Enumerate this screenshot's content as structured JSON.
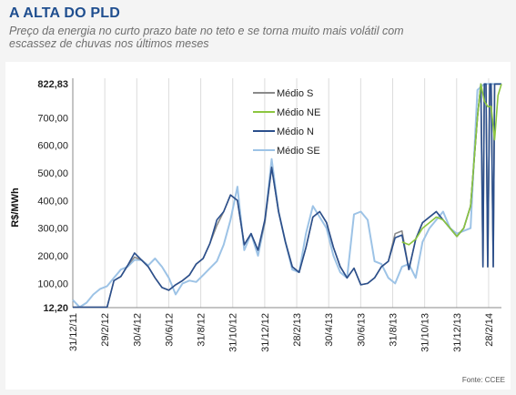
{
  "header": {
    "title": "A ALTA DO PLD",
    "subtitle": "Preço da energia no curto prazo bate no teto e se torna muito mais volátil com escassez de chuvas nos últimos meses"
  },
  "source": "Fonte: CCEE",
  "colors": {
    "S": "#8a8a8a",
    "NE": "#8cc63f",
    "N": "#2b4f8c",
    "SE": "#9dc3e6"
  },
  "chart_data": {
    "type": "line",
    "title": "A ALTA DO PLD",
    "subtitle": "Preço da energia no curto prazo bate no teto e se torna muito mais volátil com escassez de chuvas nos últimos meses",
    "ylabel": "R$/MWh",
    "xlabel": "",
    "ylim": [
      12.2,
      822.83
    ],
    "yticks": [
      12.2,
      100,
      200,
      300,
      400,
      500,
      600,
      700,
      822.83
    ],
    "ytick_labels": [
      "12,20",
      "100,00",
      "200,00",
      "300,00",
      "400,00",
      "500,00",
      "600,00",
      "700,00",
      "822,83"
    ],
    "xticks": [
      "31/12/11",
      "29/2/12",
      "30/4/12",
      "30/6/12",
      "31/8/12",
      "31/10/12",
      "31/12/12",
      "28/2/13",
      "30/4/13",
      "30/6/13",
      "31/8/13",
      "31/10/13",
      "31/12/13",
      "28/2/14"
    ],
    "grid": "vertical",
    "legend_position": "top-center",
    "x_unit": "weeks",
    "x_start": "31/12/11",
    "series": [
      {
        "name": "Médio S",
        "color_key": "S",
        "x": [
          0,
          2,
          4,
          6,
          8,
          10,
          12,
          14,
          16,
          18,
          20,
          22,
          24,
          26,
          28,
          30,
          32,
          34,
          36,
          38,
          40,
          42,
          44,
          46,
          48,
          50,
          52,
          54,
          56,
          58,
          60,
          62,
          64,
          66,
          68,
          70,
          72,
          74,
          76,
          78,
          80,
          82,
          84,
          86,
          88,
          90,
          92,
          94,
          96,
          98,
          100,
          102,
          104,
          106,
          108,
          110,
          112,
          114,
          116,
          118,
          119,
          119.6,
          120,
          120.5,
          121,
          121.6,
          122,
          122.6,
          123,
          123.6,
          124,
          125
        ],
        "y": [
          14,
          14,
          14,
          14,
          14,
          14,
          110,
          125,
          165,
          195,
          185,
          160,
          120,
          85,
          75,
          95,
          110,
          130,
          170,
          190,
          245,
          310,
          360,
          420,
          400,
          240,
          280,
          220,
          320,
          520,
          360,
          250,
          160,
          140,
          230,
          340,
          360,
          320,
          230,
          160,
          120,
          155,
          95,
          100,
          120,
          160,
          180,
          280,
          290,
          150,
          260,
          320,
          340,
          360,
          330,
          300,
          270,
          300,
          380,
          700,
          822,
          160,
          822,
          822,
          160,
          822,
          822,
          160,
          822,
          822,
          822,
          822
        ]
      },
      {
        "name": "Médio NE",
        "color_key": "NE",
        "x": [
          96,
          98,
          100,
          102,
          104,
          106,
          108,
          110,
          112,
          114,
          116,
          118,
          119,
          120,
          121,
          122,
          123,
          124,
          125
        ],
        "y": [
          250,
          240,
          260,
          300,
          320,
          340,
          330,
          300,
          270,
          300,
          380,
          700,
          822,
          760,
          740,
          740,
          620,
          780,
          822
        ]
      },
      {
        "name": "Médio N",
        "color_key": "N",
        "x": [
          0,
          2,
          4,
          6,
          8,
          10,
          12,
          14,
          16,
          18,
          20,
          22,
          24,
          26,
          28,
          30,
          32,
          34,
          36,
          38,
          40,
          42,
          44,
          46,
          48,
          50,
          52,
          54,
          56,
          58,
          60,
          62,
          64,
          66,
          68,
          70,
          72,
          74,
          76,
          78,
          80,
          82,
          84,
          86,
          88,
          90,
          92,
          94,
          96,
          98,
          100,
          102,
          104,
          106,
          108,
          110,
          112,
          114,
          116,
          118,
          119,
          119.6,
          120,
          120.5,
          121,
          121.6,
          122,
          122.6,
          123,
          123.6,
          124,
          125
        ],
        "y": [
          14,
          14,
          14,
          14,
          14,
          14,
          110,
          125,
          165,
          210,
          185,
          160,
          120,
          85,
          75,
          95,
          110,
          130,
          170,
          190,
          245,
          330,
          360,
          420,
          400,
          240,
          280,
          220,
          330,
          520,
          360,
          250,
          160,
          140,
          230,
          340,
          360,
          320,
          230,
          160,
          120,
          155,
          95,
          100,
          120,
          160,
          180,
          265,
          275,
          150,
          260,
          320,
          340,
          360,
          330,
          300,
          270,
          300,
          380,
          700,
          822,
          160,
          822,
          822,
          160,
          822,
          822,
          160,
          822,
          822,
          822,
          822
        ]
      },
      {
        "name": "Médio SE",
        "color_key": "SE",
        "x": [
          0,
          2,
          4,
          6,
          8,
          10,
          12,
          14,
          16,
          18,
          20,
          22,
          24,
          26,
          28,
          30,
          32,
          34,
          36,
          38,
          40,
          42,
          44,
          46,
          48,
          50,
          52,
          54,
          56,
          58,
          60,
          62,
          64,
          66,
          68,
          70,
          72,
          74,
          76,
          78,
          80,
          82,
          84,
          86,
          88,
          90,
          92,
          94,
          96,
          98,
          100,
          102,
          104,
          106,
          108,
          110,
          112,
          114,
          116,
          118,
          120,
          122,
          124,
          125
        ],
        "y": [
          40,
          14,
          30,
          60,
          80,
          90,
          120,
          150,
          160,
          185,
          185,
          165,
          190,
          160,
          120,
          60,
          100,
          110,
          105,
          130,
          155,
          180,
          240,
          330,
          450,
          220,
          280,
          200,
          320,
          550,
          360,
          250,
          150,
          140,
          280,
          380,
          340,
          300,
          200,
          140,
          120,
          350,
          360,
          330,
          180,
          170,
          120,
          100,
          160,
          170,
          120,
          250,
          300,
          330,
          360,
          300,
          280,
          290,
          300,
          800,
          822,
          822,
          822,
          822
        ]
      }
    ]
  }
}
